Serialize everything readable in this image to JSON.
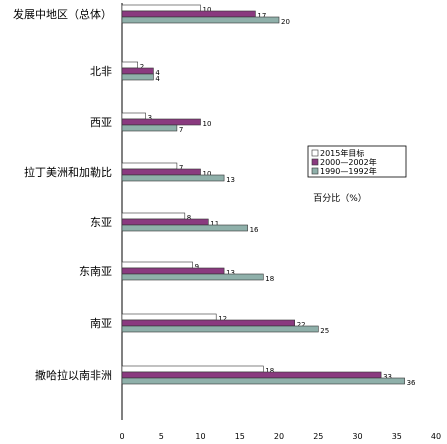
{
  "chart_data": {
    "type": "bar",
    "orientation": "horizontal",
    "categories": [
      "发展中地区（总体）",
      "北非",
      "西亚",
      "拉丁美洲和加勒比",
      "东亚",
      "东南亚",
      "南亚",
      "撒哈拉以南非洲"
    ],
    "series": [
      {
        "name": "2015年目标",
        "color": "#ffffff",
        "values": [
          10,
          2,
          3,
          7,
          8,
          9,
          12,
          18
        ]
      },
      {
        "name": "2000—2002年",
        "color": "#8a3a7f",
        "values": [
          17,
          4,
          10,
          10,
          11,
          13,
          22,
          33
        ]
      },
      {
        "name": "1990—1992年",
        "color": "#8fb0aa",
        "values": [
          20,
          4,
          7,
          13,
          16,
          18,
          25,
          36
        ]
      }
    ],
    "xlim": [
      0,
      40
    ],
    "xticks": [
      0,
      5,
      10,
      15,
      20,
      25,
      30,
      35,
      40
    ],
    "unit_label": "百分比（%）",
    "legend_position": "right"
  }
}
